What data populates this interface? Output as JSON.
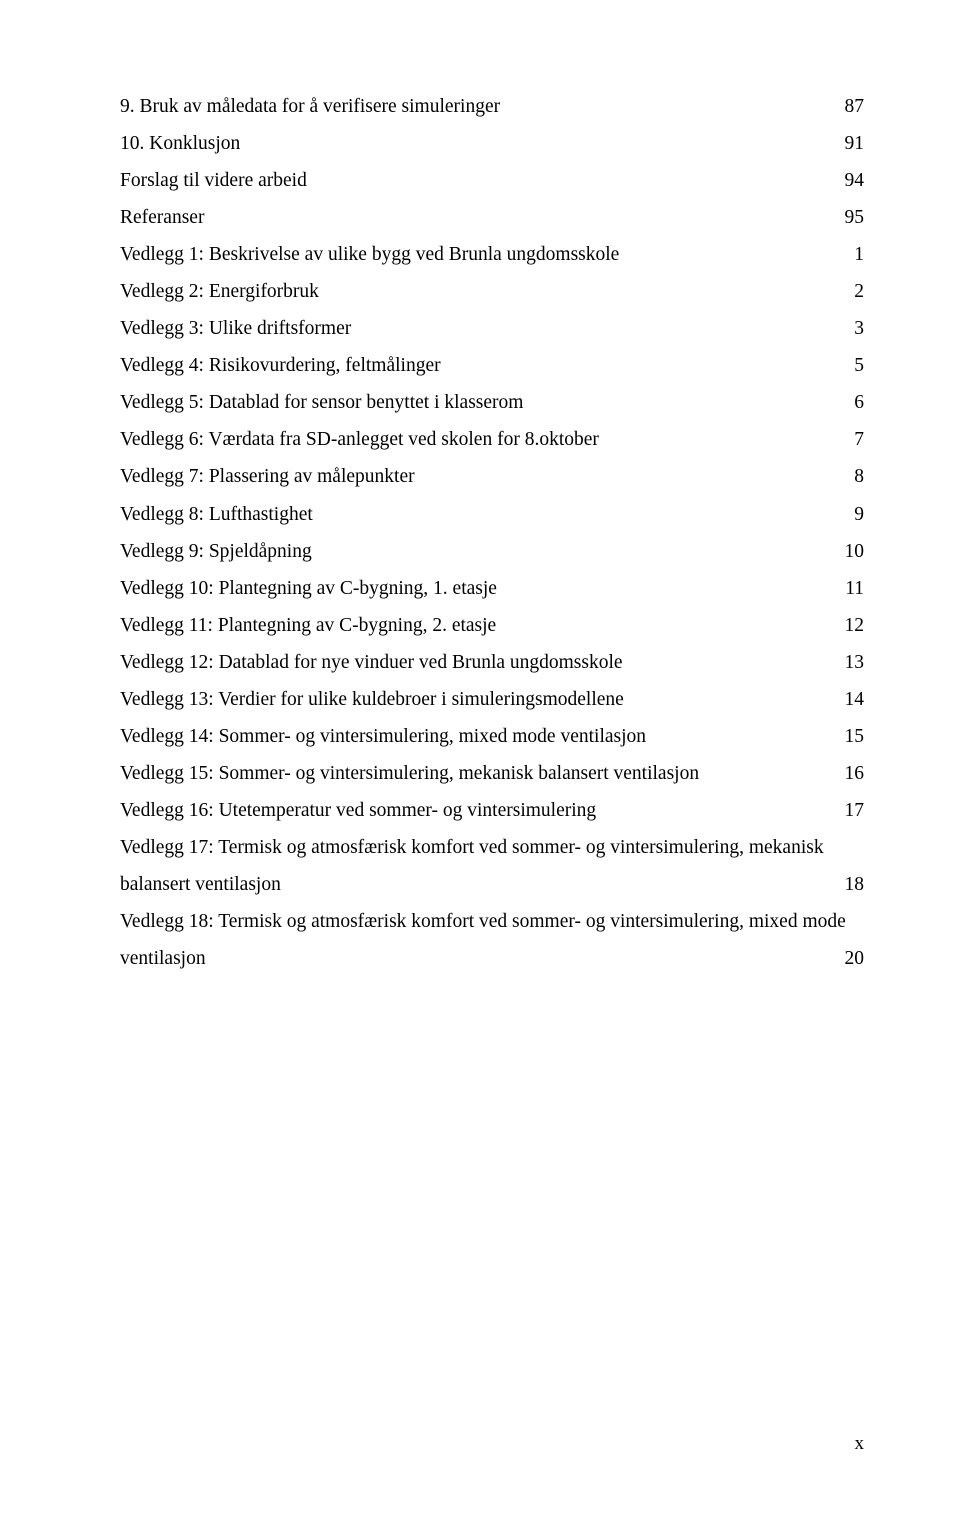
{
  "toc": [
    {
      "label": "9.   Bruk av måledata for å verifisere simuleringer",
      "page": "87"
    },
    {
      "label": "10.  Konklusjon",
      "page": "91"
    },
    {
      "label": "Forslag til videre arbeid",
      "page": "94"
    },
    {
      "label": "Referanser",
      "page": "95"
    },
    {
      "label": "Vedlegg 1: Beskrivelse av ulike bygg ved Brunla ungdomsskole",
      "page": "1"
    },
    {
      "label": "Vedlegg 2: Energiforbruk",
      "page": "2"
    },
    {
      "label": "Vedlegg 3: Ulike driftsformer",
      "page": "3"
    },
    {
      "label": "Vedlegg 4: Risikovurdering, feltmålinger",
      "page": "5"
    },
    {
      "label": "Vedlegg 5: Datablad for sensor benyttet i klasserom",
      "page": "6"
    },
    {
      "label": "Vedlegg 6: Værdata fra SD-anlegget ved skolen for 8.oktober",
      "page": "7"
    },
    {
      "label": "Vedlegg 7: Plassering av målepunkter",
      "page": "8"
    },
    {
      "label": "Vedlegg 8: Lufthastighet",
      "page": "9"
    },
    {
      "label": "Vedlegg 9: Spjeldåpning",
      "page": "10"
    },
    {
      "label": "Vedlegg 10: Plantegning av C-bygning, 1. etasje",
      "page": "11"
    },
    {
      "label": "Vedlegg 11: Plantegning av C-bygning, 2. etasje",
      "page": "12"
    },
    {
      "label": "Vedlegg 12: Datablad for nye vinduer ved Brunla ungdomsskole",
      "page": "13"
    },
    {
      "label": "Vedlegg 13: Verdier for ulike kuldebroer i simuleringsmodellene",
      "page": "14"
    },
    {
      "label": "Vedlegg 14: Sommer- og vintersimulering, mixed mode ventilasjon",
      "page": "15"
    },
    {
      "label": "Vedlegg 15: Sommer- og vintersimulering, mekanisk balansert ventilasjon",
      "page": "16"
    },
    {
      "label": "Vedlegg 16: Utetemperatur ved sommer- og vintersimulering",
      "page": "17"
    }
  ],
  "multiline": [
    {
      "first": "Vedlegg 17: Termisk og atmosfærisk komfort ved sommer- og vintersimulering, mekanisk",
      "second": "balansert ventilasjon",
      "page": "18"
    },
    {
      "first": "Vedlegg 18: Termisk og atmosfærisk komfort ved sommer- og vintersimulering, mixed mode",
      "second": "ventilasjon",
      "page": "20"
    }
  ],
  "footer": "x"
}
